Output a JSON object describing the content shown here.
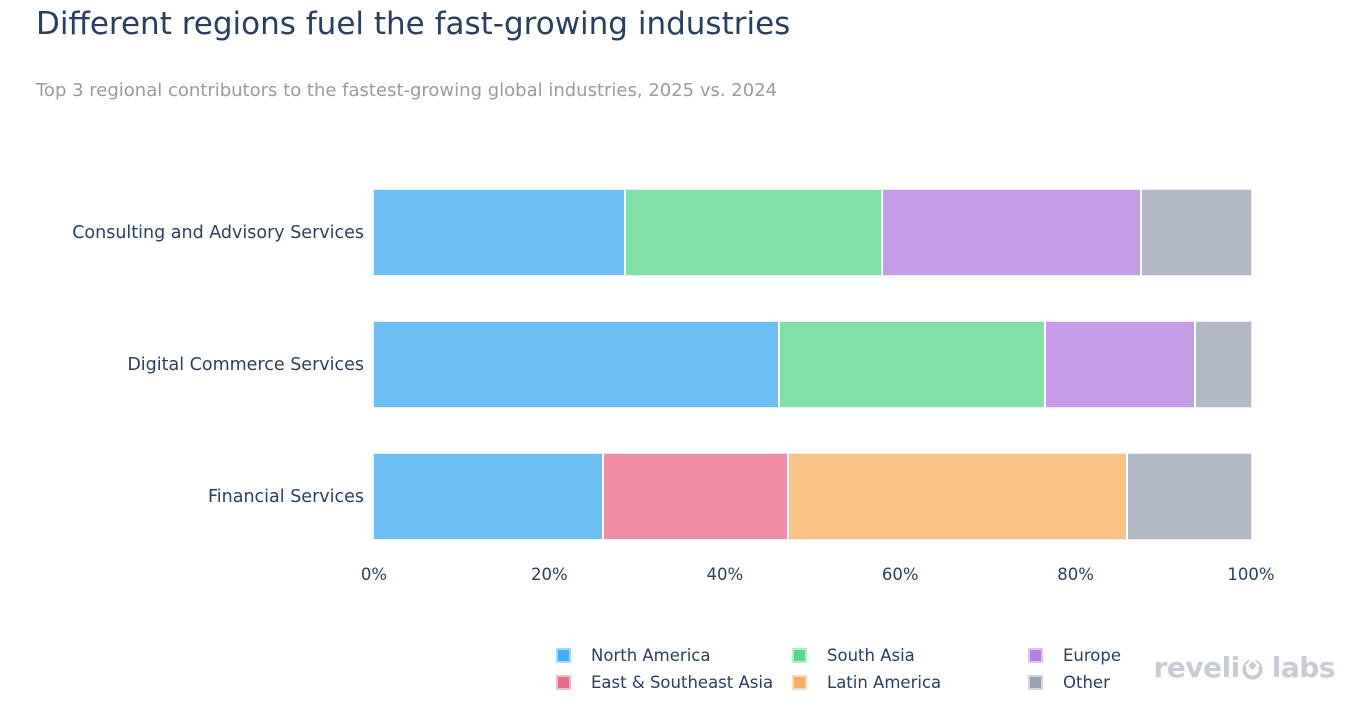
{
  "header": {
    "title": "Different regions fuel the fast-growing industries",
    "subtitle": "Top 3 regional contributors to the fastest-growing global industries, 2025 vs. 2024"
  },
  "colors": {
    "title_text": "#2a3f5f",
    "subtitle_text": "#9b9b9b",
    "axis_text": "#2a3f5f",
    "logo_text": "#c8ccd5",
    "background": "#ffffff"
  },
  "regions": [
    {
      "name": "North America",
      "swatch": "#45abf1",
      "bar": "#6ebff4"
    },
    {
      "name": "East & Southeast Asia",
      "swatch": "#e76e8c",
      "bar": "#ed8ca4"
    },
    {
      "name": "South Asia",
      "swatch": "#5bd695",
      "bar": "#80e0a8"
    },
    {
      "name": "Latin America",
      "swatch": "#f8ac66",
      "bar": "#fac287"
    },
    {
      "name": "Europe",
      "swatch": "#b381e1",
      "bar": "#c69ce8"
    },
    {
      "name": "Other",
      "swatch": "#99a2b2",
      "bar": "#b2b8c6"
    }
  ],
  "chart_data": {
    "type": "bar",
    "orientation": "horizontal",
    "stacked": true,
    "title": "Different regions fuel the fast-growing industries",
    "subtitle": "Top 3 regional contributors to the fastest-growing global industries, 2025 vs. 2024",
    "xlabel": "",
    "ylabel": "",
    "xlim": [
      0,
      100
    ],
    "x_unit": "percent",
    "x_ticks": [
      "0%",
      "20%",
      "40%",
      "60%",
      "80%",
      "100%"
    ],
    "grid": false,
    "categories": [
      "Consulting and Advisory Services",
      "Digital Commerce Services",
      "Financial Services"
    ],
    "bars": [
      {
        "category": "Consulting and Advisory Services",
        "segments": [
          {
            "region": "North America",
            "value": 28.7
          },
          {
            "region": "South Asia",
            "value": 29.3
          },
          {
            "region": "Europe",
            "value": 29.5
          },
          {
            "region": "Other",
            "value": 12.5
          }
        ]
      },
      {
        "category": "Digital Commerce Services",
        "segments": [
          {
            "region": "North America",
            "value": 46.4
          },
          {
            "region": "South Asia",
            "value": 30.3
          },
          {
            "region": "Europe",
            "value": 17.0
          },
          {
            "region": "Other",
            "value": 6.3
          }
        ]
      },
      {
        "category": "Financial Services",
        "segments": [
          {
            "region": "North America",
            "value": 26.2
          },
          {
            "region": "East & Southeast Asia",
            "value": 21.0
          },
          {
            "region": "Latin America",
            "value": 38.7
          },
          {
            "region": "Other",
            "value": 14.1
          }
        ]
      }
    ],
    "legend": {
      "position": "bottom-center",
      "columns": [
        [
          "North America",
          "East & Southeast Asia"
        ],
        [
          "South Asia",
          "Latin America"
        ],
        [
          "Europe",
          "Other"
        ]
      ]
    }
  },
  "branding": {
    "logo_prefix": "reveli",
    "logo_suffix": "labs",
    "logo_full_text": "revelio labs"
  }
}
